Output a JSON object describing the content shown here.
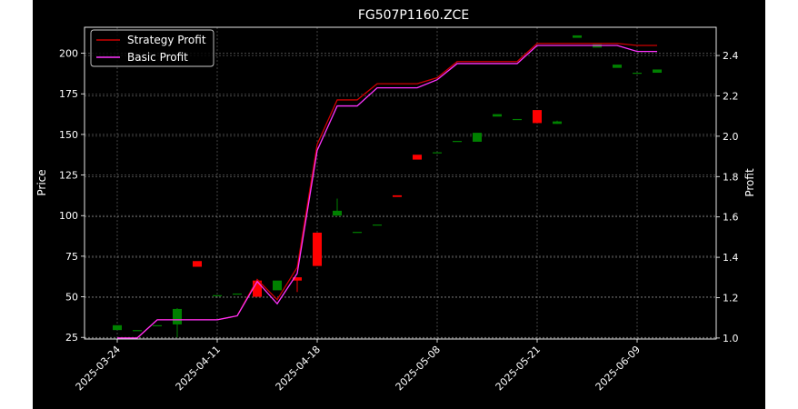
{
  "chart_data": {
    "type": "candlestick",
    "title": "FG507P1160.ZCE",
    "ylabel": "Price",
    "ylabel_right": "Profit",
    "ylim": [
      24,
      216
    ],
    "ylim_right": [
      0.995,
      2.54
    ],
    "yticks": [
      25,
      50,
      75,
      100,
      125,
      150,
      175,
      200
    ],
    "yticks_right": [
      "1.0",
      "1.2",
      "1.4",
      "1.6",
      "1.8",
      "2.0",
      "2.2",
      "2.4"
    ],
    "xtick_labels": [
      "2025-03-24",
      "2025-04-11",
      "2025-04-18",
      "2025-05-08",
      "2025-05-21",
      "2025-06-09"
    ],
    "grid": true,
    "legend_position": "upper-left",
    "candles": [
      {
        "o": 29.5,
        "c": 32.5,
        "h": 32.5,
        "l": 29.5
      },
      {
        "o": 29.5,
        "c": 29.5,
        "h": 29.5,
        "l": 29.5
      },
      {
        "o": 32.5,
        "c": 32.5,
        "h": 32.5,
        "l": 32.5
      },
      {
        "o": 33.0,
        "c": 42.5,
        "h": 43.0,
        "l": 25.0
      },
      {
        "o": 72.0,
        "c": 68.5,
        "h": 72.0,
        "l": 68.5
      },
      {
        "o": 51.0,
        "c": 51.0,
        "h": 51.0,
        "l": 51.0
      },
      {
        "o": 52.0,
        "c": 52.0,
        "h": 52.0,
        "l": 52.0
      },
      {
        "o": 60.0,
        "c": 50.0,
        "h": 60.0,
        "l": 50.0
      },
      {
        "o": 54.0,
        "c": 60.0,
        "h": 60.0,
        "l": 54.0
      },
      {
        "o": 62.0,
        "c": 60.0,
        "h": 62.0,
        "l": 53.0
      },
      {
        "o": 89.5,
        "c": 69.0,
        "h": 89.5,
        "l": 69.0
      },
      {
        "o": 100.0,
        "c": 103.0,
        "h": 110.5,
        "l": 100.0
      },
      {
        "o": 90.0,
        "c": 90.0,
        "h": 90.0,
        "l": 90.0
      },
      {
        "o": 94.5,
        "c": 94.5,
        "h": 94.5,
        "l": 94.5
      },
      {
        "o": 112.5,
        "c": 111.5,
        "h": 112.5,
        "l": 111.5
      },
      {
        "o": 137.5,
        "c": 134.5,
        "h": 137.5,
        "l": 134.5
      },
      {
        "o": 139.0,
        "c": 139.0,
        "h": 139.0,
        "l": 139.0
      },
      {
        "o": 146.0,
        "c": 146.0,
        "h": 146.0,
        "l": 146.0
      },
      {
        "o": 145.5,
        "c": 151.0,
        "h": 151.0,
        "l": 145.5
      },
      {
        "o": 161.0,
        "c": 162.5,
        "h": 162.5,
        "l": 161.0
      },
      {
        "o": 159.5,
        "c": 159.5,
        "h": 159.5,
        "l": 159.5
      },
      {
        "o": 165.0,
        "c": 157.0,
        "h": 165.0,
        "l": 157.0
      },
      {
        "o": 156.5,
        "c": 158.0,
        "h": 158.5,
        "l": 156.5
      },
      {
        "o": 209.5,
        "c": 211.0,
        "h": 211.0,
        "l": 209.5
      },
      {
        "o": 203.5,
        "c": 205.5,
        "h": 205.5,
        "l": 203.5
      },
      {
        "o": 191.0,
        "c": 193.0,
        "h": 193.0,
        "l": 191.0
      },
      {
        "o": 188.0,
        "c": 188.0,
        "h": 188.0,
        "l": 188.0
      },
      {
        "o": 188.0,
        "c": 190.0,
        "h": 190.0,
        "l": 188.0
      }
    ],
    "series": [
      {
        "name": "Strategy Profit",
        "color": "#cc0000",
        "values": [
          1.0,
          1.0,
          1.09,
          1.09,
          1.09,
          1.09,
          1.11,
          1.29,
          1.19,
          1.35,
          1.96,
          2.18,
          2.18,
          2.26,
          2.26,
          2.26,
          2.29,
          2.37,
          2.37,
          2.37,
          2.37,
          2.46,
          2.46,
          2.46,
          2.46,
          2.46,
          2.45,
          2.45
        ]
      },
      {
        "name": "Basic Profit",
        "color": "#ff33ff",
        "values": [
          1.0,
          1.0,
          1.09,
          1.09,
          1.09,
          1.09,
          1.11,
          1.28,
          1.17,
          1.32,
          1.93,
          2.15,
          2.15,
          2.24,
          2.24,
          2.24,
          2.28,
          2.36,
          2.36,
          2.36,
          2.36,
          2.45,
          2.45,
          2.45,
          2.45,
          2.45,
          2.42,
          2.42
        ]
      }
    ],
    "colors": {
      "up": "#008000",
      "down": "#ff0000",
      "grid": "#bbbbbb",
      "text": "#ffffff",
      "background": "#000000"
    }
  }
}
